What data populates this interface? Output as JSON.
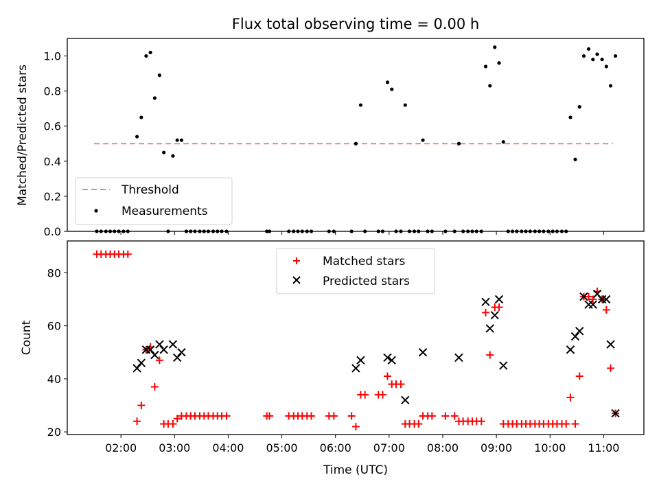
{
  "chart_data": [
    {
      "type": "scatter",
      "title": "Flux total observing time = 0.00 h",
      "xlabel": "",
      "ylabel": "Matched/Predicted stars",
      "ylim": [
        0,
        1.1
      ],
      "xlim_hours": [
        1.0,
        11.75
      ],
      "yticks": [
        0.0,
        0.2,
        0.4,
        0.6,
        0.8,
        1.0
      ],
      "ytick_labels": [
        "0.0",
        "0.2",
        "0.4",
        "0.6",
        "0.8",
        "1.0"
      ],
      "legend": {
        "placement": "lower-left",
        "entries": [
          "Threshold",
          "Measurements"
        ]
      },
      "threshold": {
        "name": "Threshold",
        "value": 0.5,
        "x_range": [
          1.5,
          11.17
        ],
        "color": "#f08080",
        "style": "dashed"
      },
      "series": [
        {
          "name": "Measurements",
          "color": "#000000",
          "x": [
            1.55,
            1.63,
            1.72,
            1.8,
            1.88,
            1.96,
            2.05,
            2.13,
            2.3,
            2.38,
            2.47,
            2.55,
            2.63,
            2.72,
            2.8,
            2.88,
            2.97,
            3.05,
            3.13,
            3.22,
            3.3,
            3.38,
            3.47,
            3.55,
            3.63,
            3.72,
            3.8,
            3.88,
            3.97,
            4.72,
            4.77,
            5.13,
            5.22,
            5.3,
            5.38,
            5.47,
            5.55,
            5.88,
            5.97,
            6.3,
            6.38,
            6.47,
            6.55,
            6.8,
            6.88,
            6.97,
            7.05,
            7.13,
            7.22,
            7.3,
            7.38,
            7.47,
            7.55,
            7.63,
            7.72,
            7.8,
            8.05,
            8.22,
            8.3,
            8.38,
            8.47,
            8.55,
            8.63,
            8.72,
            8.8,
            8.88,
            8.97,
            9.05,
            9.13,
            9.22,
            9.3,
            9.38,
            9.47,
            9.55,
            9.63,
            9.72,
            9.8,
            9.88,
            9.97,
            10.05,
            10.13,
            10.22,
            10.3,
            10.38,
            10.47,
            10.55,
            10.63,
            10.72,
            10.8,
            10.88,
            10.97,
            11.05,
            11.13,
            11.22
          ],
          "y": [
            0,
            0,
            0,
            0,
            0,
            0,
            0,
            0,
            0.54,
            0.65,
            1.0,
            1.02,
            0.76,
            0.89,
            0.45,
            0,
            0.43,
            0.52,
            0.52,
            0,
            0,
            0,
            0,
            0,
            0,
            0,
            0,
            0,
            0,
            0,
            0,
            0,
            0,
            0,
            0,
            0,
            0,
            0,
            0,
            0,
            0.5,
            0.72,
            0,
            0,
            0,
            0.85,
            0.81,
            0,
            0,
            0.72,
            0,
            0,
            0,
            0.52,
            0,
            0,
            0,
            0,
            0.5,
            0,
            0,
            0,
            0,
            0,
            0.94,
            0.83,
            1.05,
            0.96,
            0.51,
            0,
            0,
            0,
            0,
            0,
            0,
            0,
            0,
            0,
            0,
            0,
            0,
            0,
            0,
            0.65,
            0.41,
            0.71,
            1.0,
            1.04,
            0.98,
            1.01,
            0.98,
            0.94,
            0.83,
            1.0
          ]
        }
      ]
    },
    {
      "type": "scatter",
      "title": "",
      "xlabel": "Time (UTC)",
      "ylabel": "Count",
      "ylim": [
        19,
        92
      ],
      "xlim_hours": [
        1.0,
        11.75
      ],
      "yticks": [
        20,
        40,
        60,
        80
      ],
      "ytick_labels": [
        "20",
        "40",
        "60",
        "80"
      ],
      "xticks_hours": [
        2,
        3,
        4,
        5,
        6,
        7,
        8,
        9,
        10,
        11
      ],
      "xtick_labels": [
        "02:00",
        "03:00",
        "04:00",
        "05:00",
        "06:00",
        "07:00",
        "08:00",
        "09:00",
        "10:00",
        "11:00"
      ],
      "legend": {
        "placement": "top-center",
        "entries": [
          "Matched stars",
          "Predicted stars"
        ]
      },
      "series": [
        {
          "name": "Matched stars",
          "marker": "plus",
          "color": "#ff0000",
          "x": [
            1.55,
            1.63,
            1.72,
            1.8,
            1.88,
            1.96,
            2.05,
            2.13,
            2.3,
            2.38,
            2.47,
            2.55,
            2.63,
            2.72,
            2.8,
            2.88,
            2.97,
            3.05,
            3.13,
            3.22,
            3.3,
            3.38,
            3.47,
            3.55,
            3.63,
            3.72,
            3.8,
            3.88,
            3.97,
            4.72,
            4.77,
            5.13,
            5.22,
            5.3,
            5.38,
            5.47,
            5.55,
            5.88,
            5.97,
            6.3,
            6.38,
            6.47,
            6.55,
            6.8,
            6.88,
            6.97,
            7.05,
            7.13,
            7.22,
            7.3,
            7.38,
            7.47,
            7.55,
            7.63,
            7.72,
            7.8,
            8.05,
            8.22,
            8.3,
            8.38,
            8.47,
            8.55,
            8.63,
            8.72,
            8.8,
            8.88,
            8.97,
            9.05,
            9.13,
            9.22,
            9.3,
            9.38,
            9.47,
            9.55,
            9.63,
            9.72,
            9.8,
            9.88,
            9.97,
            10.05,
            10.13,
            10.22,
            10.3,
            10.38,
            10.47,
            10.55,
            10.63,
            10.72,
            10.8,
            10.88,
            10.97,
            11.05,
            11.13,
            11.22
          ],
          "y": [
            87,
            87,
            87,
            87,
            87,
            87,
            87,
            87,
            24,
            30,
            51,
            52,
            37,
            47,
            23,
            23,
            23,
            25,
            26,
            26,
            26,
            26,
            26,
            26,
            26,
            26,
            26,
            26,
            26,
            26,
            26,
            26,
            26,
            26,
            26,
            26,
            26,
            26,
            26,
            26,
            22,
            34,
            34,
            34,
            34,
            41,
            38,
            38,
            38,
            23,
            23,
            23,
            23,
            26,
            26,
            26,
            26,
            26,
            24,
            24,
            24,
            24,
            24,
            24,
            65,
            49,
            67,
            67,
            23,
            23,
            23,
            23,
            23,
            23,
            23,
            23,
            23,
            23,
            23,
            23,
            23,
            23,
            23,
            33,
            23,
            41,
            71,
            71,
            70,
            73,
            70,
            66,
            44,
            27
          ]
        },
        {
          "name": "Predicted stars",
          "marker": "x",
          "color": "#000000",
          "x": [
            2.3,
            2.38,
            2.47,
            2.55,
            2.63,
            2.72,
            2.8,
            2.97,
            3.05,
            3.13,
            6.38,
            6.47,
            6.97,
            7.05,
            7.3,
            7.63,
            8.3,
            8.8,
            8.88,
            8.97,
            9.05,
            9.13,
            10.38,
            10.47,
            10.55,
            10.63,
            10.72,
            10.8,
            10.88,
            10.97,
            11.05,
            11.13,
            11.22
          ],
          "y": [
            44,
            46,
            51,
            51,
            49,
            53,
            51,
            53,
            48,
            50,
            44,
            47,
            48,
            47,
            32,
            50,
            48,
            69,
            59,
            64,
            70,
            45,
            51,
            56,
            58,
            71,
            68,
            68,
            72,
            70,
            70,
            53,
            27
          ]
        }
      ]
    }
  ]
}
